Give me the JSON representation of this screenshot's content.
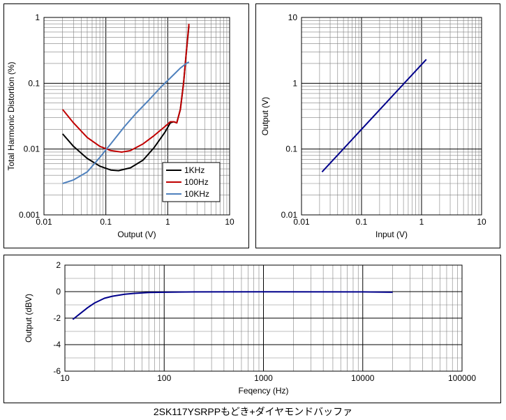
{
  "caption": "2SK117YSRPPもどき+ダイヤモンドバッファ",
  "chart_data": [
    {
      "type": "line",
      "xlabel": "Output (V)",
      "ylabel": "Total Harmonic Distortion (%)",
      "xscale": "log",
      "yscale": "log",
      "xlim": [
        0.01,
        10
      ],
      "ylim": [
        0.001,
        1
      ],
      "xticks": [
        "0.01",
        "0.1",
        "1",
        "10"
      ],
      "yticks": [
        "0.001",
        "0.01",
        "0.1",
        "1"
      ],
      "grid": true,
      "legend_position": "lower-right",
      "series": [
        {
          "name": "1KHz",
          "color": "#000000",
          "x": [
            0.02,
            0.03,
            0.05,
            0.08,
            0.12,
            0.16,
            0.25,
            0.4,
            0.6,
            0.9,
            1.1,
            1.25,
            1.4,
            1.6,
            1.8,
            2.0,
            2.2
          ],
          "y": [
            0.017,
            0.011,
            0.0072,
            0.0055,
            0.0048,
            0.0047,
            0.0052,
            0.0068,
            0.0105,
            0.018,
            0.025,
            0.026,
            0.025,
            0.04,
            0.1,
            0.3,
            0.75
          ]
        },
        {
          "name": "100Hz",
          "color": "#c00000",
          "x": [
            0.02,
            0.03,
            0.05,
            0.08,
            0.12,
            0.18,
            0.25,
            0.4,
            0.6,
            0.9,
            1.1,
            1.25,
            1.4,
            1.6,
            1.8,
            2.0,
            2.2
          ],
          "y": [
            0.04,
            0.025,
            0.015,
            0.011,
            0.0095,
            0.009,
            0.0095,
            0.012,
            0.016,
            0.022,
            0.026,
            0.026,
            0.025,
            0.04,
            0.1,
            0.3,
            0.8
          ]
        },
        {
          "name": "10KHz",
          "color": "#4f81bd",
          "x": [
            0.02,
            0.03,
            0.05,
            0.08,
            0.12,
            0.2,
            0.3,
            0.5,
            0.8,
            1.0,
            1.3,
            1.6,
            2.0,
            2.2
          ],
          "y": [
            0.003,
            0.0034,
            0.0045,
            0.0075,
            0.012,
            0.022,
            0.034,
            0.056,
            0.09,
            0.11,
            0.14,
            0.17,
            0.2,
            0.21
          ]
        }
      ]
    },
    {
      "type": "line",
      "xlabel": "Input (V)",
      "ylabel": "Output (V)",
      "xscale": "log",
      "yscale": "log",
      "xlim": [
        0.01,
        10
      ],
      "ylim": [
        0.01,
        10
      ],
      "xticks": [
        "0.01",
        "0.1",
        "1",
        "10"
      ],
      "yticks": [
        "0.01",
        "0.1",
        "1",
        "10"
      ],
      "grid": true,
      "series": [
        {
          "name": "",
          "color": "#00008b",
          "x": [
            0.022,
            1.2
          ],
          "y": [
            0.045,
            2.3
          ]
        }
      ]
    },
    {
      "type": "line",
      "xlabel": "Feqency (Hz)",
      "ylabel": "Output (dBV)",
      "xscale": "log",
      "yscale": "linear",
      "xlim": [
        10,
        100000
      ],
      "ylim": [
        -6,
        2
      ],
      "xticks": [
        "10",
        "100",
        "1000",
        "10000",
        "100000"
      ],
      "yticks": [
        "2",
        "0",
        "-2",
        "-4",
        "-6"
      ],
      "grid": true,
      "series": [
        {
          "name": "",
          "color": "#00008b",
          "x": [
            12,
            14,
            17,
            20,
            25,
            30,
            40,
            50,
            70,
            100,
            200,
            1000,
            10000,
            20000
          ],
          "y": [
            -2.1,
            -1.7,
            -1.2,
            -0.85,
            -0.5,
            -0.35,
            -0.2,
            -0.13,
            -0.07,
            -0.05,
            -0.02,
            -0.01,
            -0.02,
            -0.05
          ]
        }
      ]
    }
  ]
}
